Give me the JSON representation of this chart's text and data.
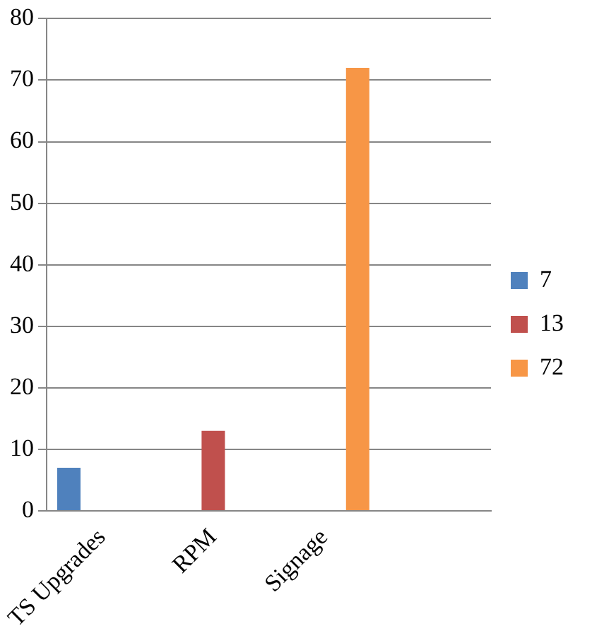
{
  "chart_data": {
    "type": "bar",
    "categories": [
      "TS Upgrades",
      "RPM",
      "Signage",
      null
    ],
    "series": [
      {
        "name": "7",
        "color": "#4f81bd",
        "values": [
          7,
          null,
          null,
          null
        ]
      },
      {
        "name": "13",
        "color": "#c0504d",
        "values": [
          null,
          13,
          null,
          null
        ]
      },
      {
        "name": "72",
        "color": "#f79646",
        "values": [
          null,
          null,
          72,
          null
        ]
      }
    ],
    "ylim": [
      0,
      80
    ],
    "yticks": [
      0,
      10,
      20,
      30,
      40,
      50,
      60,
      70,
      80
    ],
    "grid": "y",
    "legend": "right"
  }
}
